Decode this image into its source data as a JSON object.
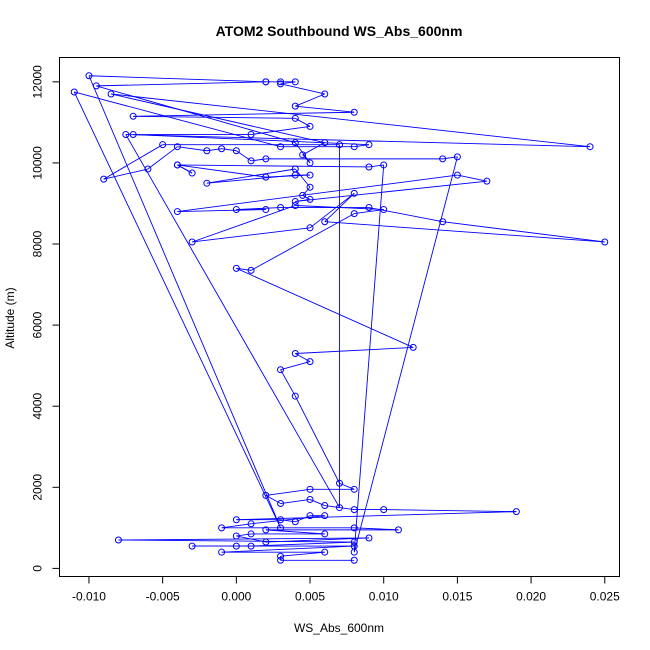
{
  "chart_data": {
    "type": "line",
    "title": "ATOM2 Southbound WS_Abs_600nm",
    "xlabel": "WS_Abs_600nm",
    "ylabel": "Altitude (m)",
    "xlim": [
      -0.012,
      0.026
    ],
    "ylim": [
      -200,
      12600
    ],
    "xticks": [
      {
        "value": -0.01,
        "label": "-0.010"
      },
      {
        "value": -0.005,
        "label": "-0.005"
      },
      {
        "value": 0.0,
        "label": "0.000"
      },
      {
        "value": 0.005,
        "label": "0.005"
      },
      {
        "value": 0.01,
        "label": "0.010"
      },
      {
        "value": 0.015,
        "label": "0.015"
      },
      {
        "value": 0.02,
        "label": "0.020"
      },
      {
        "value": 0.025,
        "label": "0.025"
      }
    ],
    "yticks": [
      {
        "value": 0,
        "label": "0"
      },
      {
        "value": 2000,
        "label": "2000"
      },
      {
        "value": 4000,
        "label": "4000"
      },
      {
        "value": 6000,
        "label": "6000"
      },
      {
        "value": 8000,
        "label": "8000"
      },
      {
        "value": 10000,
        "label": "10000"
      },
      {
        "value": 12000,
        "label": "12000"
      }
    ],
    "grid": false,
    "legend": "none",
    "series_color": "#0000ff",
    "marker": "open-circle",
    "points": [
      [
        0.002,
        12000
      ],
      [
        0.003,
        12000
      ],
      [
        0.004,
        12000
      ],
      [
        0.003,
        11950
      ],
      [
        0.006,
        11700
      ],
      [
        0.004,
        11400
      ],
      [
        0.008,
        11250
      ],
      [
        -0.007,
        11150
      ],
      [
        0.004,
        11100
      ],
      [
        0.005,
        10900
      ],
      [
        0.001,
        10700
      ],
      [
        -0.007,
        10700
      ],
      [
        0.009,
        10450
      ],
      [
        0.008,
        10400
      ],
      [
        0.003,
        10400
      ],
      [
        -0.011,
        11750
      ],
      [
        0.003,
        1000
      ],
      [
        -0.01,
        12150
      ],
      [
        0.002,
        12000
      ],
      [
        -0.0095,
        11900
      ],
      [
        0.004,
        10500
      ],
      [
        0.005,
        10000
      ],
      [
        0.0045,
        10200
      ],
      [
        0.006,
        10500
      ],
      [
        -0.0085,
        11700
      ],
      [
        0.024,
        10400
      ],
      [
        -0.0075,
        10700
      ],
      [
        0.007,
        1500
      ],
      [
        0.007,
        10450
      ],
      [
        -0.005,
        10450
      ],
      [
        -0.009,
        9600
      ],
      [
        -0.006,
        9850
      ],
      [
        -0.004,
        10400
      ],
      [
        -0.002,
        10300
      ],
      [
        -0.001,
        10350
      ],
      [
        0.0,
        10300
      ],
      [
        0.001,
        10050
      ],
      [
        0.002,
        10100
      ],
      [
        0.014,
        10100
      ],
      [
        0.015,
        10150
      ],
      [
        0.008,
        400
      ],
      [
        0.01,
        9950
      ],
      [
        0.009,
        9900
      ],
      [
        -0.004,
        9950
      ],
      [
        -0.003,
        9750
      ],
      [
        -0.004,
        9950
      ],
      [
        0.002,
        9650
      ],
      [
        0.005,
        9700
      ],
      [
        0.004,
        9700
      ],
      [
        -0.002,
        9500
      ],
      [
        0.004,
        9850
      ],
      [
        0.005,
        9400
      ],
      [
        0.0045,
        9200
      ],
      [
        0.005,
        9100
      ],
      [
        0.004,
        9050
      ],
      [
        0.017,
        9550
      ],
      [
        0.015,
        9700
      ],
      [
        -0.004,
        8800
      ],
      [
        0.002,
        8850
      ],
      [
        0.0,
        8850
      ],
      [
        0.003,
        8900
      ],
      [
        0.009,
        8900
      ],
      [
        0.014,
        8550
      ],
      [
        0.025,
        8050
      ],
      [
        0.006,
        8550
      ],
      [
        0.008,
        9250
      ],
      [
        0.005,
        8400
      ],
      [
        -0.003,
        8050
      ],
      [
        0.004,
        8950
      ],
      [
        0.01,
        8850
      ],
      [
        0.008,
        8750
      ],
      [
        0.001,
        7350
      ],
      [
        0.0,
        7400
      ],
      [
        0.012,
        5450
      ],
      [
        0.004,
        5300
      ],
      [
        0.005,
        5100
      ],
      [
        0.003,
        4900
      ],
      [
        0.004,
        4250
      ],
      [
        0.007,
        2100
      ],
      [
        0.008,
        1950
      ],
      [
        0.005,
        1950
      ],
      [
        0.002,
        1800
      ],
      [
        0.003,
        1600
      ],
      [
        0.005,
        1700
      ],
      [
        0.006,
        1550
      ],
      [
        0.008,
        1450
      ],
      [
        0.01,
        1450
      ],
      [
        0.019,
        1400
      ],
      [
        0.0,
        1200
      ],
      [
        0.003,
        1200
      ],
      [
        0.004,
        1150
      ],
      [
        0.005,
        1300
      ],
      [
        0.006,
        1300
      ],
      [
        0.001,
        1100
      ],
      [
        -0.001,
        1000
      ],
      [
        0.008,
        1000
      ],
      [
        0.011,
        950
      ],
      [
        0.002,
        950
      ],
      [
        0.006,
        850
      ],
      [
        0.001,
        850
      ],
      [
        0.0,
        800
      ],
      [
        0.002,
        650
      ],
      [
        0.009,
        750
      ],
      [
        -0.008,
        700
      ],
      [
        0.008,
        650
      ],
      [
        0.001,
        550
      ],
      [
        0.0,
        550
      ],
      [
        -0.003,
        550
      ],
      [
        0.008,
        550
      ],
      [
        -0.001,
        400
      ],
      [
        0.006,
        400
      ],
      [
        0.003,
        300
      ],
      [
        0.003,
        200
      ],
      [
        0.008,
        200
      ]
    ]
  }
}
